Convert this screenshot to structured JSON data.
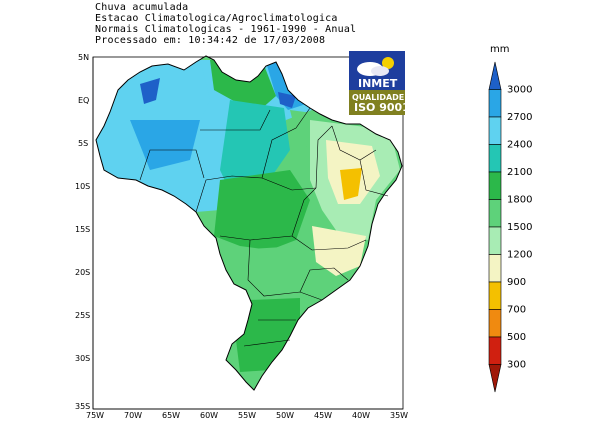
{
  "header": {
    "line1": "Chuva acumulada",
    "line2": "Estacao Climatologica/Agroclimatologica",
    "line3": "Normais Climatologicas - 1961-1990 - Anual",
    "line4": "Processado em: 10:34:42 de 17/03/2008"
  },
  "logo": {
    "name": "INMET",
    "badge": "QUALIDADE",
    "cert": "ISO 9001",
    "icon": "cloud-sun-icon"
  },
  "axes": {
    "lat_labels": [
      "5N",
      "EQ",
      "5S",
      "10S",
      "15S",
      "20S",
      "25S",
      "30S",
      "35S"
    ],
    "lon_labels": [
      "75W",
      "70W",
      "65W",
      "60W",
      "55W",
      "50W",
      "45W",
      "40W",
      "35W"
    ]
  },
  "colorbar": {
    "unit": "mm",
    "levels": [
      "3000",
      "2700",
      "2400",
      "2100",
      "1800",
      "1500",
      "1200",
      "900",
      "700",
      "500",
      "300"
    ],
    "colors": [
      "#1e60c8",
      "#2aa6e6",
      "#5fd2f0",
      "#24c6b4",
      "#2cb84a",
      "#5ed27a",
      "#a8ecb4",
      "#f4f4c4",
      "#f4c000",
      "#f08a10",
      "#d02010",
      "#a01808"
    ]
  }
}
